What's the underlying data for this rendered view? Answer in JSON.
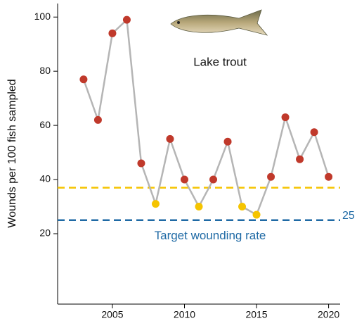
{
  "chart_data": {
    "type": "line",
    "annotation": "Lake trout",
    "ylabel": "Wounds per 100 fish sampled",
    "x": [
      2003,
      2004,
      2005,
      2006,
      2007,
      2008,
      2009,
      2010,
      2011,
      2012,
      2013,
      2014,
      2015,
      2016,
      2017,
      2018,
      2019,
      2020
    ],
    "series": [
      {
        "color": "#b5b5b5",
        "values": [
          77,
          62,
          94,
          99,
          46,
          31,
          55,
          40,
          30,
          40,
          54,
          30,
          27,
          41,
          63,
          47.5,
          57.5,
          41
        ],
        "marker_colors": [
          "#c0392b",
          "#c0392b",
          "#c0392b",
          "#c0392b",
          "#c0392b",
          "#f5c400",
          "#c0392b",
          "#c0392b",
          "#f5c400",
          "#c0392b",
          "#c0392b",
          "#f5c400",
          "#f5c400",
          "#c0392b",
          "#c0392b",
          "#c0392b",
          "#c0392b",
          "#c0392b"
        ]
      }
    ],
    "reference_lines": [
      {
        "value": 37,
        "color": "#f5c400"
      },
      {
        "value": 25,
        "color": "#1f6aa5",
        "label": "Target wounding rate"
      }
    ],
    "xlim": [
      2001.2,
      2020.8
    ],
    "xticks": [
      2005,
      2010,
      2015,
      2020
    ],
    "ylim": [
      -6,
      105
    ],
    "yticks": [
      20,
      40,
      60,
      80,
      100
    ]
  }
}
